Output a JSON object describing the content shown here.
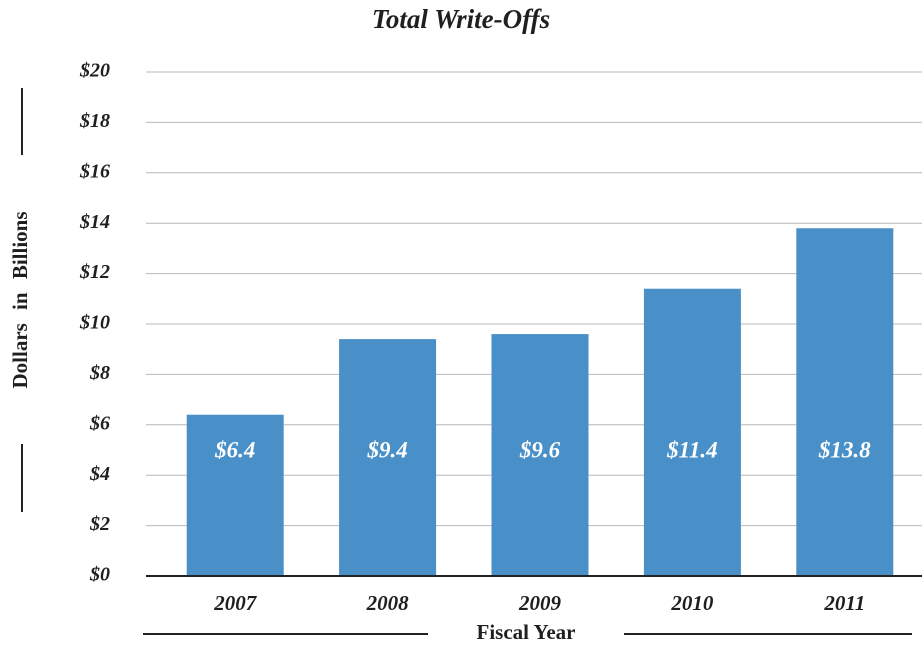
{
  "chart_data": {
    "type": "bar",
    "title": "Total Write-Offs",
    "xlabel": "Fiscal Year",
    "ylabel": "Dollars in Billions",
    "categories": [
      "2007",
      "2008",
      "2009",
      "2010",
      "2011"
    ],
    "values": [
      6.4,
      9.4,
      9.6,
      11.4,
      13.8
    ],
    "data_labels": [
      "$6.4",
      "$9.4",
      "$9.6",
      "$11.4",
      "$13.8"
    ],
    "ylim": [
      0,
      20
    ],
    "yticks": [
      0,
      2,
      4,
      6,
      8,
      10,
      12,
      14,
      16,
      18,
      20
    ],
    "ytick_labels": [
      "$0",
      "$2",
      "$4",
      "$6",
      "$8",
      "$10",
      "$12",
      "$14",
      "$16",
      "$18",
      "$20"
    ],
    "grid": true,
    "bar_color": "#4a90c8",
    "grid_color": "#b8b8b8",
    "axis_color": "#222222"
  }
}
